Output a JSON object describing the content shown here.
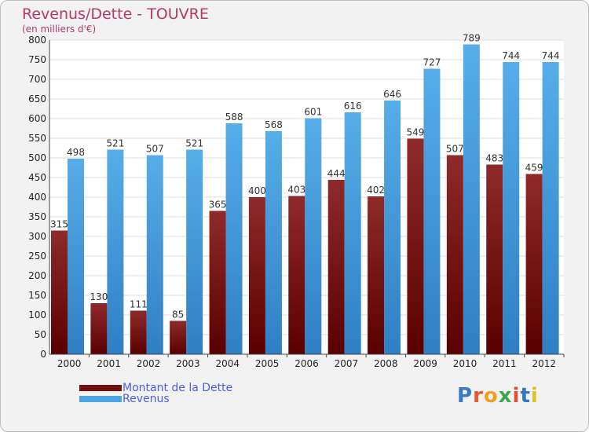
{
  "title": "Revenus/Dette - TOUVRE",
  "subtitle": "(en milliers d'€)",
  "logo": {
    "letters": [
      "P",
      "r",
      "o",
      "x",
      "i",
      "t",
      "i"
    ],
    "colors": [
      "#3a77c8",
      "#e25a2a",
      "#f0a020",
      "#3ba84a",
      "#e05030",
      "#2f76c5",
      "#e0c020"
    ]
  },
  "colors": {
    "dette": "#7a1a1a",
    "revenus": "#4ba3e3",
    "title": "#b5386c"
  },
  "legend": [
    {
      "label": "Montant de la Dette",
      "color": "#6e0f0f"
    },
    {
      "label": "Revenus",
      "color": "#4ba3e3"
    }
  ],
  "chart_data": {
    "type": "bar",
    "title": "Revenus/Dette - TOUVRE",
    "subtitle": "(en milliers d'€)",
    "categories": [
      "2000",
      "2001",
      "2002",
      "2003",
      "2004",
      "2005",
      "2006",
      "2007",
      "2008",
      "2009",
      "2010",
      "2011",
      "2012"
    ],
    "series": [
      {
        "name": "Montant de la Dette",
        "values": [
          315,
          130,
          111,
          85,
          365,
          400,
          403,
          444,
          402,
          549,
          507,
          483,
          459
        ]
      },
      {
        "name": "Revenus",
        "values": [
          498,
          521,
          507,
          521,
          588,
          568,
          601,
          616,
          646,
          727,
          789,
          744,
          744
        ]
      }
    ],
    "ylim": [
      0,
      800
    ],
    "yticks": [
      0,
      50,
      100,
      150,
      200,
      250,
      300,
      350,
      400,
      450,
      500,
      550,
      600,
      650,
      700,
      750,
      800
    ],
    "grid": true,
    "legend_position": "bottom-left"
  }
}
